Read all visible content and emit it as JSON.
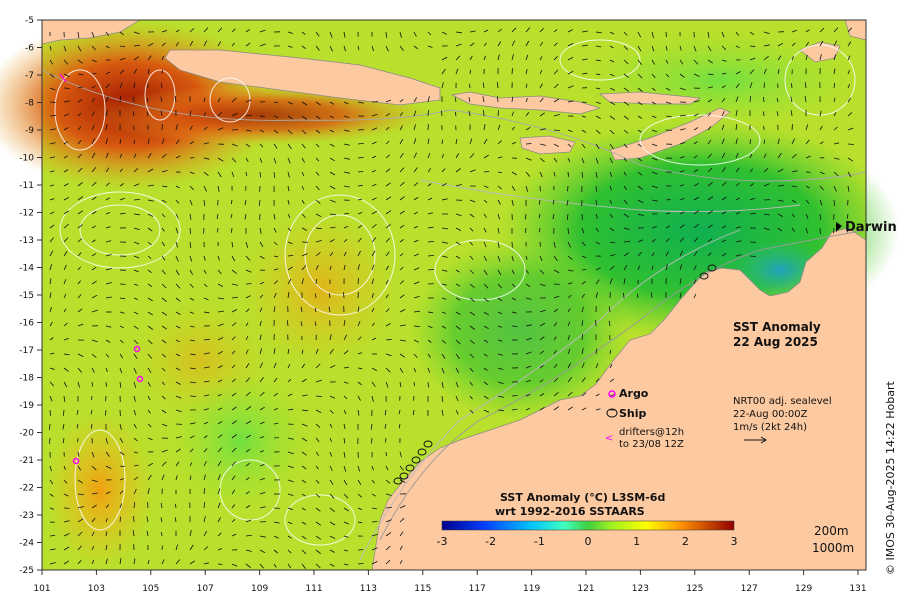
{
  "map": {
    "lon_ticks": [
      "101",
      "103",
      "105",
      "107",
      "109",
      "111",
      "113",
      "115",
      "117",
      "119",
      "121",
      "123",
      "125",
      "127",
      "129",
      "131"
    ],
    "lat_ticks": [
      "-5",
      "-6",
      "-7",
      "-8",
      "-9",
      "-10",
      "-11",
      "-12",
      "-13",
      "-14",
      "-15",
      "-16",
      "-17",
      "-18",
      "-19",
      "-20",
      "-21",
      "-22",
      "-23",
      "-24",
      "-25"
    ],
    "place_label": "Darwin",
    "anomaly_title": "SST Anomaly",
    "anomaly_date": "22 Aug 2025",
    "legend": {
      "argo": "Argo",
      "ship": "Ship",
      "drifters_line1": "drifters@12h",
      "drifters_line2": "to 23/08 12Z"
    },
    "current_info": {
      "line1": "NRT00 adj. sealevel",
      "line2": "22-Aug 00:00Z",
      "line3": "1m/s (2kt 24h)"
    },
    "colorbar": {
      "title_line1": "SST Anomaly (°C) L3SM-6d",
      "title_line2": "wrt 1992-2016 SSTAARS",
      "ticks": [
        "-3",
        "-2",
        "-1",
        "0",
        "1",
        "2",
        "3"
      ]
    },
    "isobaths": {
      "shallow": "200m",
      "deep": "1000m"
    },
    "credit": "© IMOS 30-Aug-2025 14:22 Hobart",
    "colors": {
      "land": "#fdc9a0",
      "argo": "#ff00ff",
      "darwin_marker": "#000000"
    }
  }
}
